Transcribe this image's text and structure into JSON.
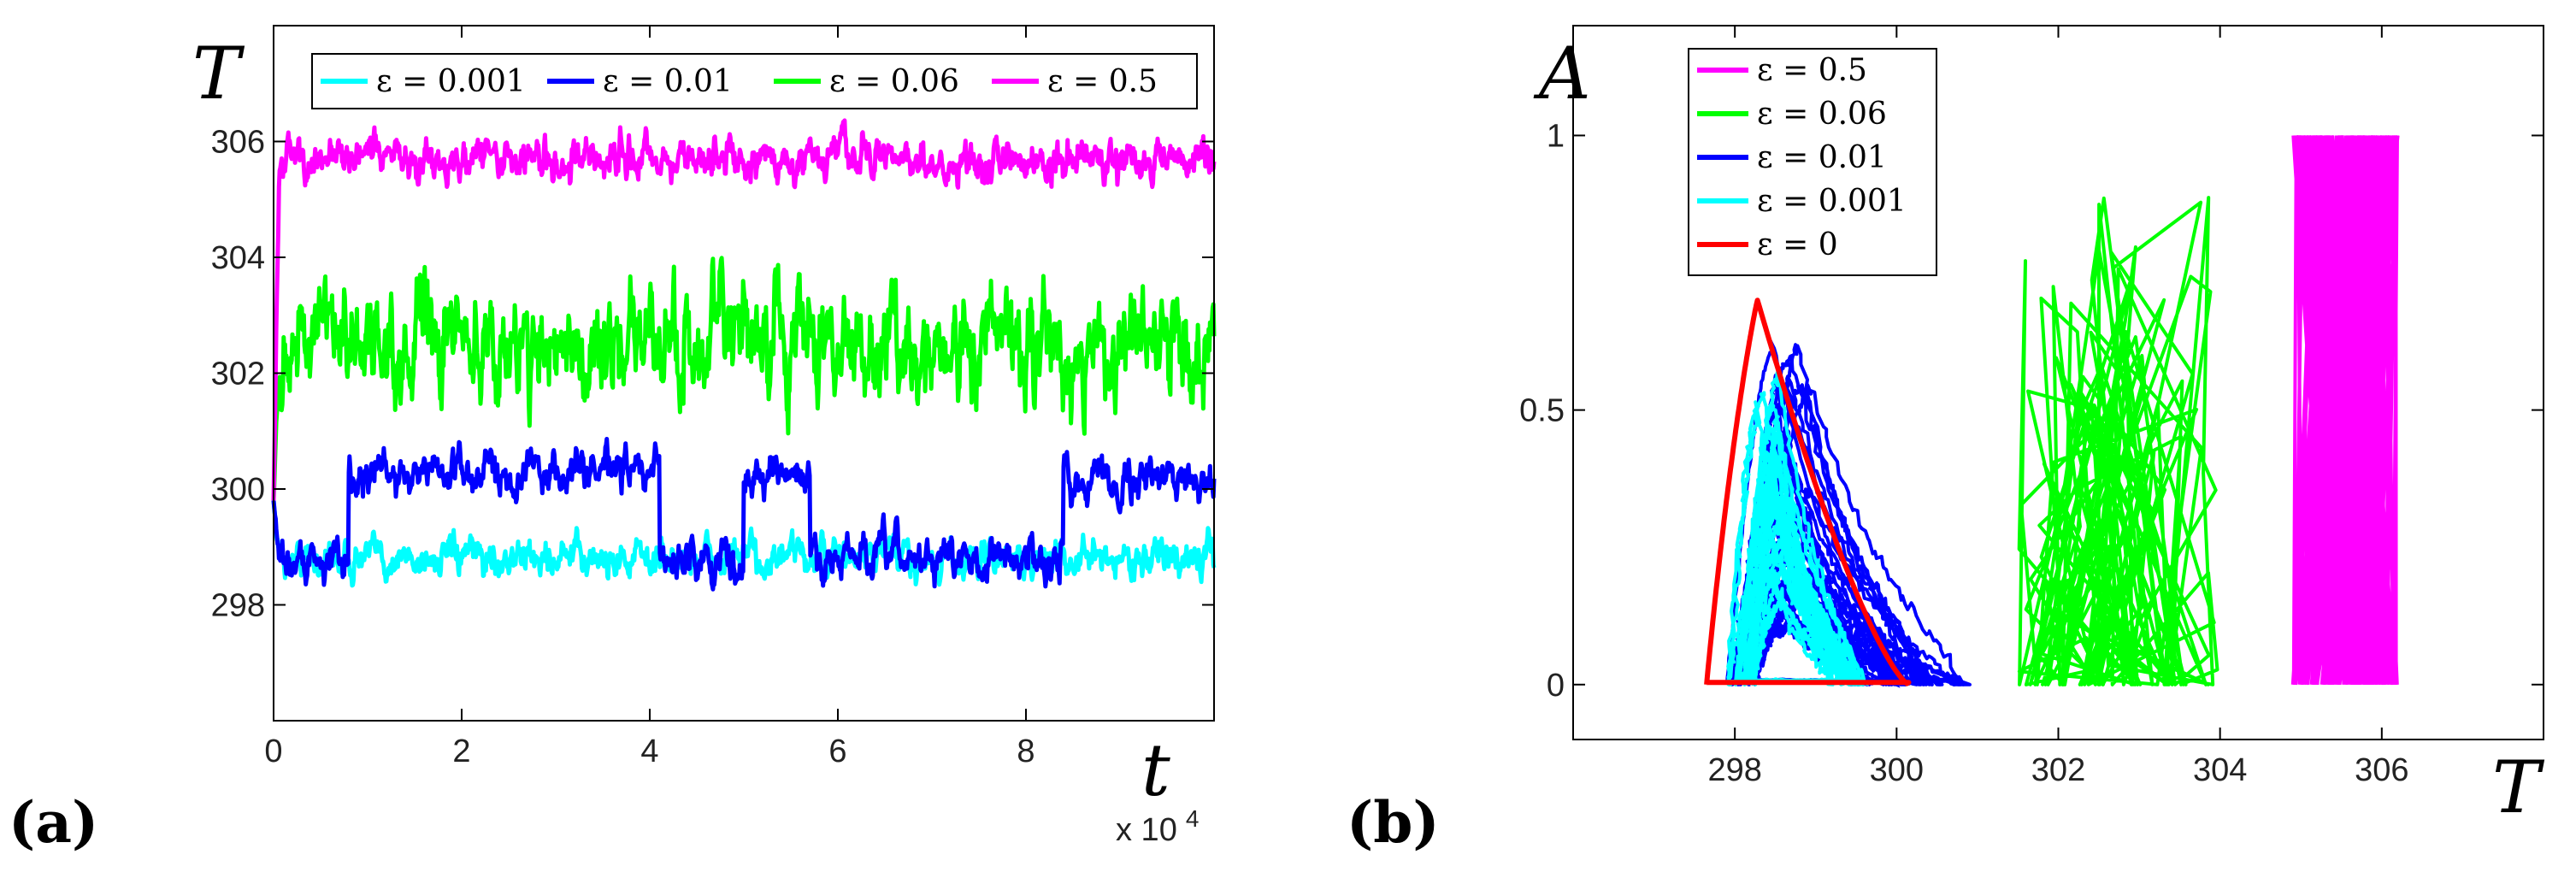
{
  "chart_data": [
    {
      "type": "line",
      "panel_label": "(a)",
      "xlabel": "t",
      "ylabel": "T",
      "x_multiplier": "x 10",
      "x_multiplier_exp": "4",
      "xlim": [
        0,
        10
      ],
      "ylim": [
        296,
        308
      ],
      "x_ticks": [
        0,
        2,
        4,
        6,
        8
      ],
      "y_ticks": [
        298,
        300,
        302,
        304,
        306
      ],
      "legend_position": "top",
      "series": [
        {
          "name": "ε = 0.001",
          "color": "#00FFFF",
          "mean": 298.8,
          "noise": 0.32,
          "jumps": []
        },
        {
          "name": "ε = 0.01",
          "color": "#0000FF",
          "mean": 298.8,
          "noise": 0.35,
          "jumps": [
            {
              "from": 0.8,
              "to": 4.1,
              "level": 300.3
            },
            {
              "from": 5.0,
              "to": 5.7,
              "level": 300.2
            },
            {
              "from": 8.4,
              "to": 10,
              "level": 300.2
            }
          ]
        },
        {
          "name": "ε = 0.06",
          "color": "#00FF00",
          "mean": 302.5,
          "noise": 0.9,
          "jumps": []
        },
        {
          "name": "ε = 0.5",
          "color": "#FF00FF",
          "mean": 305.7,
          "noise": 0.35,
          "jumps": []
        }
      ]
    },
    {
      "type": "line",
      "panel_label": "(b)",
      "xlabel": "T",
      "ylabel": "A",
      "xlim": [
        296,
        308
      ],
      "ylim": [
        -0.1,
        1.2
      ],
      "x_ticks": [
        298,
        300,
        302,
        304,
        306
      ],
      "y_ticks": [
        0,
        0.5,
        1
      ],
      "legend_position": "top-left",
      "series": [
        {
          "name": "ε = 0.5",
          "color": "#FF00FF",
          "region": "band",
          "T_range": [
            304.9,
            306.2
          ],
          "A_range": [
            0,
            1
          ]
        },
        {
          "name": "ε = 0.06",
          "color": "#00FF00",
          "region": "scribble",
          "T_range": [
            301.5,
            304.0
          ],
          "A_range": [
            0,
            0.9
          ]
        },
        {
          "name": "ε = 0.01",
          "color": "#0000FF",
          "region": "loops",
          "T_range": [
            297.9,
            300.9
          ],
          "A_range": [
            0,
            0.62
          ]
        },
        {
          "name": "ε = 0.001",
          "color": "#00FFFF",
          "region": "loops",
          "T_range": [
            297.9,
            299.6
          ],
          "A_range": [
            0,
            0.57
          ]
        },
        {
          "name": "ε = 0",
          "color": "#FF0000",
          "region": "limit-cycle",
          "T_range": [
            297.6,
            300.2
          ],
          "A_range": [
            0,
            0.7
          ]
        }
      ]
    }
  ]
}
